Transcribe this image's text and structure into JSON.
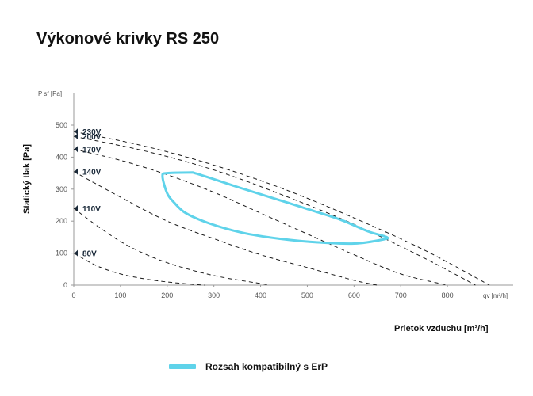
{
  "chart_data": {
    "type": "line",
    "title": "Výkonové krivky RS 250",
    "xlabel": "Prietok vzduchu [m³/h]",
    "ylabel": "Statický tlak [Pa]",
    "x_axis_head": "qv [m³/h]",
    "y_axis_head": "P sf [Pa]",
    "xlim": [
      0,
      900
    ],
    "ylim": [
      0,
      500
    ],
    "xticks": [
      0,
      100,
      200,
      300,
      400,
      500,
      600,
      700,
      800
    ],
    "yticks": [
      0,
      100,
      200,
      300,
      400,
      500
    ],
    "grid": false,
    "series": [
      {
        "name": "230V",
        "x": [
          0,
          150,
          300,
          450,
          600,
          750,
          890
        ],
        "y": [
          480,
          435,
          375,
          300,
          210,
          110,
          0
        ]
      },
      {
        "name": "200V",
        "x": [
          0,
          150,
          300,
          450,
          600,
          750,
          860
        ],
        "y": [
          465,
          420,
          360,
          280,
          190,
          85,
          0
        ]
      },
      {
        "name": "170V",
        "x": [
          0,
          100,
          200,
          300,
          400,
          500,
          600,
          700,
          800
        ],
        "y": [
          425,
          390,
          345,
          290,
          225,
          160,
          95,
          35,
          0
        ]
      },
      {
        "name": "140V",
        "x": [
          0,
          100,
          200,
          300,
          400,
          500,
          600,
          650
        ],
        "y": [
          355,
          275,
          200,
          145,
          95,
          55,
          15,
          0
        ]
      },
      {
        "name": "110V",
        "x": [
          0,
          60,
          120,
          200,
          300,
          400,
          420
        ],
        "y": [
          240,
          175,
          120,
          70,
          30,
          5,
          0
        ]
      },
      {
        "name": "80V",
        "x": [
          0,
          50,
          100,
          150,
          200,
          250,
          280
        ],
        "y": [
          100,
          60,
          35,
          20,
          10,
          3,
          0
        ]
      }
    ],
    "erp_region": {
      "name": "Rozsah kompatibilný s ErP",
      "color": "#5fd3ea",
      "x": [
        255,
        290,
        350,
        420,
        500,
        570,
        630,
        670,
        660,
        600,
        520,
        440,
        360,
        290,
        240,
        215,
        200,
        190,
        200,
        255
      ],
      "y": [
        352,
        336,
        307,
        275,
        238,
        205,
        168,
        150,
        142,
        130,
        134,
        145,
        164,
        193,
        225,
        258,
        287,
        340,
        350,
        352
      ]
    },
    "legend": {
      "position": "bottom",
      "entries": [
        "Rozsah kompatibilný s ErP"
      ]
    }
  }
}
